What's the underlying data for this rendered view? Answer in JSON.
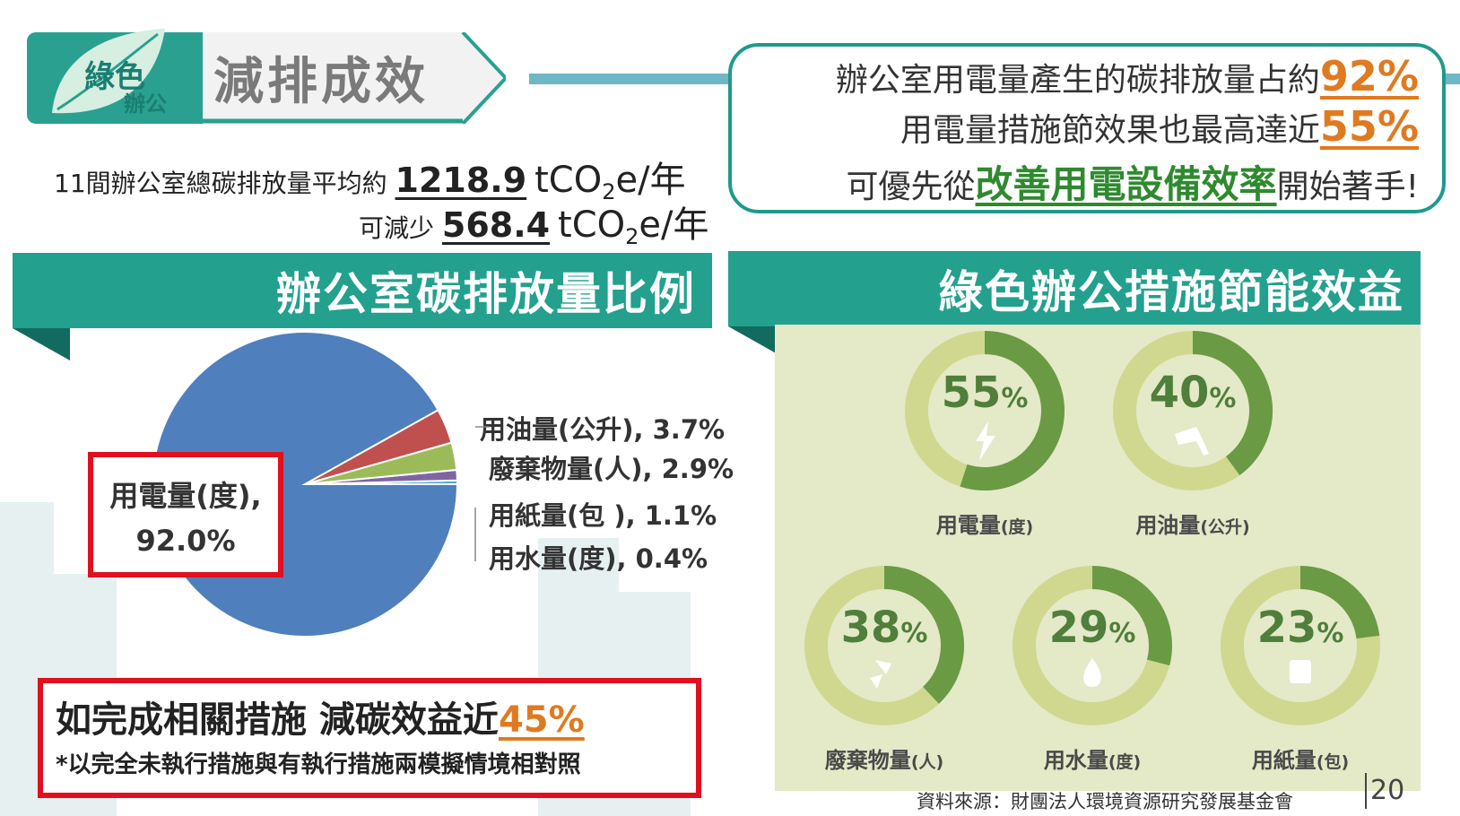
{
  "header": {
    "badge_main": "綠色",
    "badge_sub": "辦公",
    "title": "減排成效"
  },
  "stats": {
    "line1_prefix": "11間辦公室總碳排放量平均約",
    "line1_value": "1218.9",
    "line2_prefix": "可減少",
    "line2_value": "568.4",
    "unit_pre": "tCO",
    "unit_sub": "2",
    "unit_post": "e/年"
  },
  "callout": {
    "l1_text": "辦公室用電量產生的碳排放量占約",
    "l1_value": "92%",
    "l2_text": "用電量措施節效果也最高達近",
    "l2_value": "55%",
    "l3_pre": "可優先從",
    "l3_highlight": "改善用電設備效率",
    "l3_post": "開始著手!"
  },
  "left_panel": {
    "title": "辦公室碳排放量比例",
    "electric_label_l1": "用電量(度),",
    "electric_label_l2": "92.0%",
    "labels": [
      "用油量(公升), 3.7%",
      "廢棄物量(人), 2.9%",
      "用紙量(包 ), 1.1%",
      "用水量(度), 0.4%"
    ],
    "summary_main": "如完成相關措施 減碳效益近",
    "summary_value": "45%",
    "summary_note": "*以完全未執行措施與有執行措施兩模擬情境相對照"
  },
  "right_panel": {
    "title": "綠色辦公措施節能效益",
    "rings": [
      {
        "pct": "55",
        "name": "用電量",
        "unit": "(度)",
        "value": 55,
        "icon": "lightning-icon"
      },
      {
        "pct": "40",
        "name": "用油量",
        "unit": "(公升)",
        "value": 40,
        "icon": "fuel-nozzle-icon"
      },
      {
        "pct": "38",
        "name": "廢棄物量",
        "unit": "(人)",
        "value": 38,
        "icon": "waste-icon"
      },
      {
        "pct": "29",
        "name": "用水量",
        "unit": "(度)",
        "value": 29,
        "icon": "water-drop-icon"
      },
      {
        "pct": "23",
        "name": "用紙量",
        "unit": "(包)",
        "value": 23,
        "icon": "paper-icon"
      }
    ],
    "percent_sign": "%"
  },
  "chart_data": {
    "type": "pie",
    "categories": [
      "用電量(度)",
      "用油量(公升)",
      "廢棄物量(人)",
      "用紙量(包 )",
      "用水量(度)"
    ],
    "values": [
      92.0,
      3.7,
      2.9,
      1.1,
      0.4
    ],
    "colors": [
      "#4f7fbd",
      "#c0504d",
      "#9bbb59",
      "#8064a2",
      "#4bacc6"
    ]
  },
  "footer": {
    "source": "資料來源：財團法人環境資源研究發展基金會",
    "page_number": "20"
  }
}
